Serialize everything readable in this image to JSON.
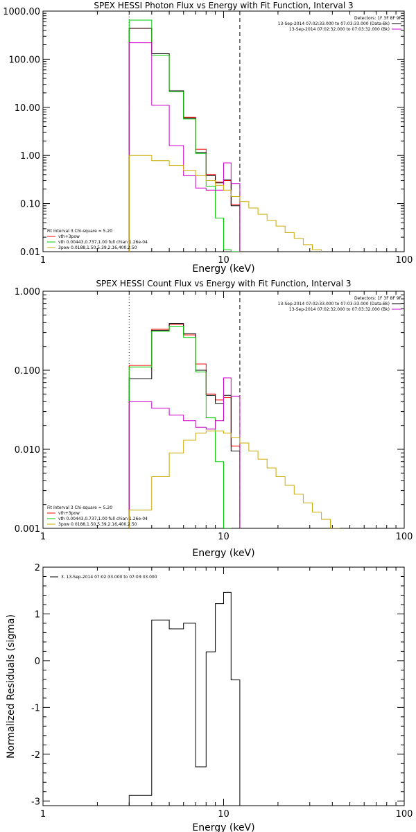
{
  "chart_data": [
    {
      "type": "line",
      "title": "SPEX HESSI Photon Flux vs Energy with Fit Function, Interval 3",
      "xlabel": "Energy (keV)",
      "ylabel": "",
      "xscale": "log",
      "yscale": "log",
      "xlim": [
        1,
        100
      ],
      "ylim": [
        0.01,
        1000
      ],
      "x_ticks": [
        1,
        10,
        100
      ],
      "x_tick_labels": [
        "1",
        "10",
        "100"
      ],
      "y_ticks": [
        0.01,
        0.1,
        1,
        10,
        100,
        1000
      ],
      "y_tick_labels": [
        "0.01",
        "0.10",
        "1.00",
        "10.00",
        "100.00",
        "1000.00"
      ],
      "vlines": [
        {
          "x": 3.0,
          "style": "dotted"
        },
        {
          "x": 12.3,
          "style": "dashed"
        }
      ],
      "legend_top_right": [
        {
          "text": "Detectors: 1F 3F 8F 9F",
          "color": "#000000",
          "line": false
        },
        {
          "text": "13-Sep-2014 07:02:33.000 to 07:03:33.000 (Data-Bk)",
          "color": "#000000",
          "line": true
        },
        {
          "text": "13-Sep-2014 07:02:32.000 to 07:03:32.000 (Bk)",
          "color": "#cc00cc",
          "line": true
        }
      ],
      "legend_bottom_left": [
        {
          "text": "Fit Interval 3   Chi-square = 5.20",
          "color": "#000000",
          "line": false
        },
        {
          "text": "vth+3pow",
          "color": "#ff0000",
          "line": true
        },
        {
          "text": "vth 0.00443,0.737,1.00   full chian 1.26e-04",
          "color": "#00cc00",
          "line": true
        },
        {
          "text": "3pow 0.0188,1.50,5.39,2.16,400,2.50",
          "color": "#ccaa00",
          "line": true
        }
      ],
      "series": [
        {
          "color": "#ff0000",
          "edges": [
            3.0,
            4.0,
            5.0,
            6.0,
            7.0,
            8.0,
            9.0,
            10.0,
            11.0,
            12.3
          ],
          "values": [
            440,
            130,
            22,
            6.2,
            1.35,
            0.4,
            0.28,
            0.3,
            0.095
          ]
        },
        {
          "color": "#000000",
          "edges": [
            3.0,
            4.0,
            5.0,
            6.0,
            7.0,
            8.0,
            9.0,
            10.0,
            11.0,
            12.3
          ],
          "values": [
            440,
            130,
            22,
            6.0,
            1.15,
            0.38,
            0.27,
            0.31,
            0.09
          ]
        },
        {
          "color": "#00cc00",
          "edges": [
            3.0,
            4.0,
            5.0,
            6.0,
            7.0,
            8.0,
            9.0,
            10.0,
            11.0,
            12.3
          ],
          "values": [
            650,
            120,
            21,
            5.7,
            1.1,
            0.23,
            0.05,
            0.011,
            0.009
          ]
        },
        {
          "color": "#cc00cc",
          "edges": [
            3.0,
            4.0,
            5.0,
            6.0,
            7.0,
            8.0,
            9.0,
            10.0,
            11.0,
            12.3
          ],
          "values": [
            220,
            11,
            1.6,
            0.38,
            0.21,
            0.19,
            0.19,
            0.7,
            0.26
          ]
        },
        {
          "color": "#ccaa00",
          "edges": [
            3.0,
            4.0,
            5.0,
            6.0,
            7.0,
            8.0,
            9.0,
            10.0,
            11.0,
            12.3,
            13.8,
            15.5,
            17.4,
            19.5,
            21.9,
            24.6,
            27.6,
            31.0,
            34.8
          ],
          "values": [
            1.0,
            0.78,
            0.62,
            0.49,
            0.38,
            0.3,
            0.24,
            0.19,
            0.14,
            0.11,
            0.081,
            0.06,
            0.045,
            0.034,
            0.025,
            0.019,
            0.014,
            0.011
          ]
        }
      ]
    },
    {
      "type": "line",
      "title": "SPEX HESSI Count Flux vs Energy with Fit Function, Interval 3",
      "xlabel": "Energy (keV)",
      "ylabel": "",
      "xscale": "log",
      "yscale": "log",
      "xlim": [
        1,
        100
      ],
      "ylim": [
        0.001,
        1
      ],
      "x_ticks": [
        1,
        10,
        100
      ],
      "x_tick_labels": [
        "1",
        "10",
        "100"
      ],
      "y_ticks": [
        0.001,
        0.01,
        0.1,
        1
      ],
      "y_tick_labels": [
        "0.001",
        "0.010",
        "0.100",
        "1.000"
      ],
      "vlines": [
        {
          "x": 3.0,
          "style": "dotted"
        },
        {
          "x": 12.3,
          "style": "dashed"
        }
      ],
      "legend_top_right": [
        {
          "text": "Detectors: 1F 3F 8F 9F",
          "color": "#000000",
          "line": false
        },
        {
          "text": "13-Sep-2014 07:02:33.000 to 07:03:33.000 (Data-Bk)",
          "color": "#000000",
          "line": true
        },
        {
          "text": "13-Sep-2014 07:02:32.000 to 07:03:32.000 (Bk)",
          "color": "#cc00cc",
          "line": true
        }
      ],
      "legend_bottom_left": [
        {
          "text": "Fit Interval 3   Chi-square = 5.20",
          "color": "#000000",
          "line": false
        },
        {
          "text": "vth+3pow",
          "color": "#ff0000",
          "line": true
        },
        {
          "text": "vth 0.00443,0.737,1.00   full chian 1.26e-04",
          "color": "#00cc00",
          "line": true
        },
        {
          "text": "3pow 0.0188,1.50,5.39,2.16,400,2.50",
          "color": "#ccaa00",
          "line": true
        }
      ],
      "series": [
        {
          "color": "#ff0000",
          "edges": [
            3.0,
            4.0,
            5.0,
            6.0,
            7.0,
            8.0,
            9.0,
            10.0,
            11.0,
            12.3
          ],
          "values": [
            0.115,
            0.33,
            0.38,
            0.28,
            0.12,
            0.05,
            0.042,
            0.045,
            0.011
          ]
        },
        {
          "color": "#000000",
          "edges": [
            3.0,
            4.0,
            5.0,
            6.0,
            7.0,
            8.0,
            9.0,
            10.0,
            11.0,
            12.3
          ],
          "values": [
            0.078,
            0.32,
            0.39,
            0.29,
            0.1,
            0.048,
            0.038,
            0.048,
            0.0095
          ]
        },
        {
          "color": "#00cc00",
          "edges": [
            3.0,
            4.0,
            5.0,
            6.0,
            7.0,
            8.0,
            9.0,
            10.0,
            11.0
          ],
          "values": [
            0.11,
            0.31,
            0.36,
            0.26,
            0.095,
            0.025,
            0.007,
            0.001
          ]
        },
        {
          "color": "#cc00cc",
          "edges": [
            3.0,
            4.0,
            5.0,
            6.0,
            7.0,
            8.0,
            9.0,
            10.0,
            11.0,
            12.3
          ],
          "values": [
            0.04,
            0.033,
            0.027,
            0.023,
            0.019,
            0.018,
            0.023,
            0.08,
            0.047
          ]
        },
        {
          "color": "#ccaa00",
          "edges": [
            3.0,
            4.0,
            5.0,
            6.0,
            7.0,
            8.0,
            9.0,
            10.0,
            11.0,
            12.3,
            13.8,
            15.5,
            17.4,
            19.5,
            21.9,
            24.6,
            27.6,
            31.0,
            34.8,
            39.0,
            43.8
          ],
          "values": [
            0.0017,
            0.0045,
            0.009,
            0.013,
            0.016,
            0.017,
            0.017,
            0.016,
            0.014,
            0.012,
            0.0095,
            0.0075,
            0.0058,
            0.0045,
            0.0035,
            0.0027,
            0.0021,
            0.0016,
            0.0013,
            0.001
          ]
        }
      ]
    },
    {
      "type": "line",
      "title": "",
      "xlabel": "Energy (keV)",
      "ylabel": "Normalized Residuals (sigma)",
      "xscale": "log",
      "yscale": "linear",
      "xlim": [
        1,
        100
      ],
      "ylim": [
        -3.1,
        2.0
      ],
      "x_ticks": [
        1,
        10,
        100
      ],
      "x_tick_labels": [
        "1",
        "10",
        "100"
      ],
      "y_ticks": [
        -3,
        -2,
        -1,
        0,
        1,
        2
      ],
      "y_tick_labels": [
        "-3",
        "-2",
        "-1",
        "0",
        "1",
        "2"
      ],
      "vlines": [],
      "legend_top_left": [
        {
          "text": "3. 13-Sep-2014 07:02:33.000 to 07:03:33.000",
          "color": "#000000",
          "line": true
        }
      ],
      "series": [
        {
          "color": "#000000",
          "edges": [
            3.0,
            4.0,
            5.0,
            6.0,
            7.0,
            8.0,
            9.0,
            10.0,
            11.0,
            12.3
          ],
          "values": [
            -2.88,
            0.87,
            0.68,
            0.8,
            -2.27,
            0.19,
            1.22,
            1.46,
            -0.41
          ],
          "drop_to": -3.1
        }
      ]
    }
  ]
}
